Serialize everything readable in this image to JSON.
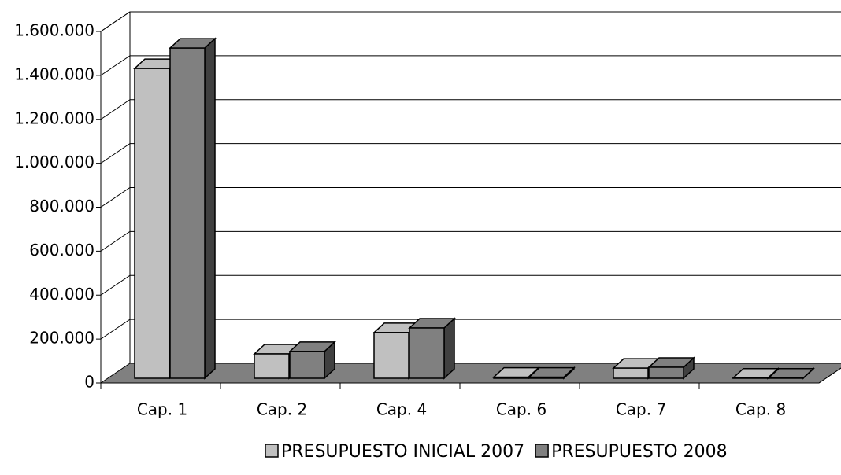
{
  "chart_data": {
    "type": "bar3d",
    "categories": [
      "Cap. 1",
      "Cap. 2",
      "Cap. 4",
      "Cap. 6",
      "Cap. 7",
      "Cap. 8"
    ],
    "series": [
      {
        "name": "PRESUPUESTO INICIAL 2007",
        "color": "#c0c0c0",
        "values": [
          1410000,
          111000,
          208000,
          5000,
          46000,
          1000
        ]
      },
      {
        "name": "PRESUPUESTO 2008",
        "color": "#808080",
        "values": [
          1503000,
          122000,
          229000,
          5000,
          50000,
          1000
        ]
      }
    ],
    "ylim": [
      0,
      1600000
    ],
    "yticks": [
      0,
      {
        "value": 200000,
        "label": "200.000"
      },
      {
        "value": 400000,
        "label": "400.000"
      },
      {
        "value": 600000,
        "label": "600.000"
      },
      {
        "value": 800000,
        "label": "800.000"
      },
      {
        "value": 1000000,
        "label": "1.000.000"
      },
      {
        "value": 1200000,
        "label": "1.200.000"
      },
      {
        "value": 1400000,
        "label": "1.400.000"
      },
      {
        "value": 1600000,
        "label": "1.600.000"
      }
    ],
    "grid": true,
    "legend": "bottom"
  }
}
